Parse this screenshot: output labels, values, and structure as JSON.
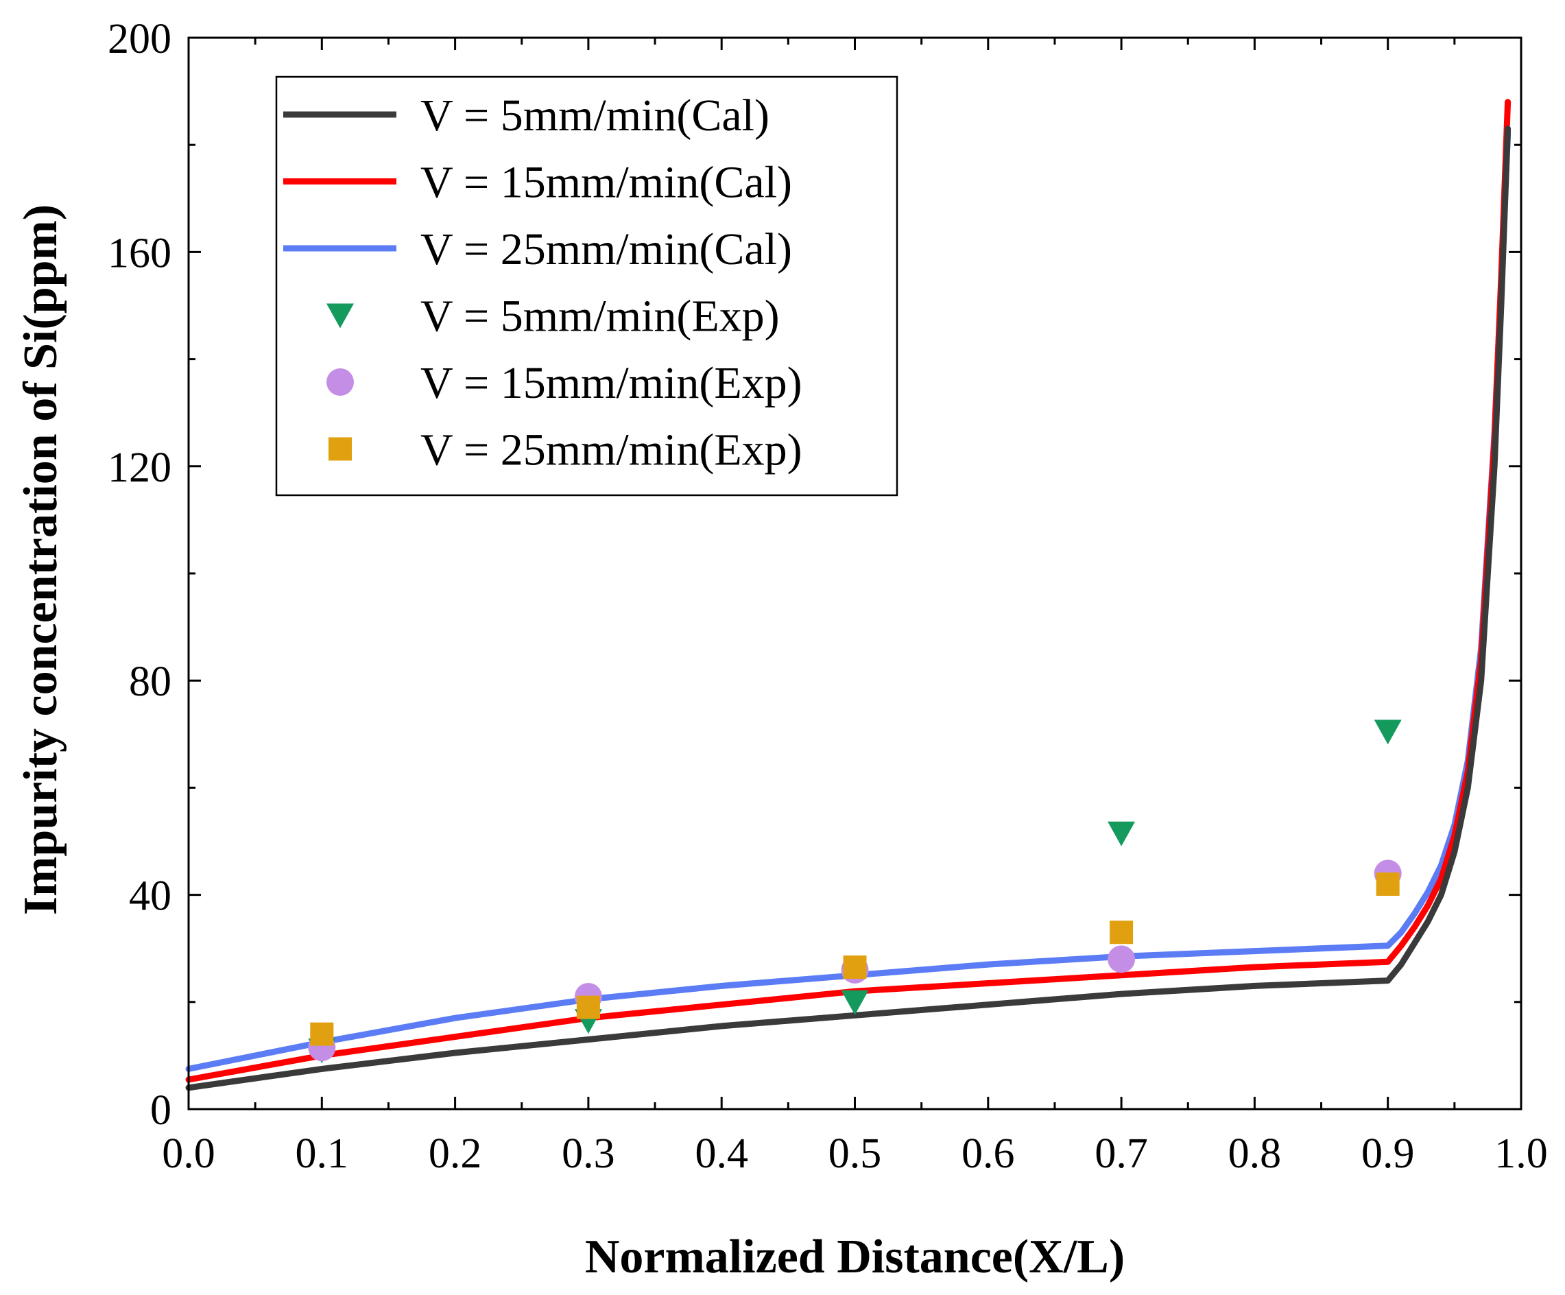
{
  "chart_data": {
    "type": "line",
    "title": "",
    "xlabel": "Normalized Distance(X/L)",
    "ylabel": "Impurity concentration of Si(ppm)",
    "xlim": [
      0.0,
      1.0
    ],
    "ylim": [
      0,
      200
    ],
    "x_ticks": [
      "0.0",
      "0.1",
      "0.2",
      "0.3",
      "0.4",
      "0.5",
      "0.6",
      "0.7",
      "0.8",
      "0.9",
      "1.0"
    ],
    "y_ticks": [
      "0",
      "40",
      "80",
      "120",
      "160",
      "200"
    ],
    "grid": false,
    "legend_position": "top-left",
    "series": [
      {
        "name": "V = 5mm/min(Cal)",
        "kind": "line",
        "color": "#3a3a3a",
        "x": [
          0.0,
          0.1,
          0.2,
          0.3,
          0.4,
          0.5,
          0.6,
          0.7,
          0.8,
          0.9,
          0.91,
          0.92,
          0.93,
          0.94,
          0.95,
          0.96,
          0.97,
          0.98,
          0.985,
          0.99
        ],
        "y": [
          4,
          7.5,
          10.5,
          13,
          15.5,
          17.5,
          19.5,
          21.5,
          23,
          24,
          27,
          31,
          35,
          40,
          48,
          60,
          80,
          120,
          150,
          183
        ]
      },
      {
        "name": "V = 15mm/min(Cal)",
        "kind": "line",
        "color": "#ff0000",
        "x": [
          0.0,
          0.1,
          0.2,
          0.3,
          0.4,
          0.5,
          0.6,
          0.7,
          0.8,
          0.9,
          0.91,
          0.92,
          0.93,
          0.94,
          0.95,
          0.96,
          0.97,
          0.98,
          0.985,
          0.99
        ],
        "y": [
          5.5,
          10,
          13.5,
          17,
          19.5,
          22,
          23.5,
          25,
          26.5,
          27.5,
          30.5,
          34,
          38,
          43,
          51,
          63,
          84,
          125,
          155,
          188
        ]
      },
      {
        "name": "V = 25mm/min(Cal)",
        "kind": "line",
        "color": "#5b7cf5",
        "x": [
          0.0,
          0.1,
          0.2,
          0.3,
          0.4,
          0.5,
          0.6,
          0.7,
          0.8,
          0.9,
          0.91,
          0.92,
          0.93,
          0.94,
          0.95,
          0.96,
          0.97,
          0.98,
          0.985,
          0.99
        ],
        "y": [
          7.5,
          12.5,
          17,
          20.5,
          23,
          25,
          27,
          28.5,
          29.5,
          30.5,
          33,
          36.5,
          40.5,
          45.5,
          53,
          65,
          86,
          126,
          154,
          182
        ]
      },
      {
        "name": "V = 5mm/min(Exp)",
        "kind": "scatter",
        "marker": "triangle-down",
        "color": "#159a5e",
        "x": [
          0.1,
          0.3,
          0.5,
          0.7,
          0.9
        ],
        "y": [
          11,
          16.5,
          20,
          51.5,
          70.5
        ]
      },
      {
        "name": "V = 15mm/min(Exp)",
        "kind": "scatter",
        "marker": "circle",
        "color": "#c58ee6",
        "x": [
          0.1,
          0.3,
          0.5,
          0.7,
          0.9
        ],
        "y": [
          11.5,
          21,
          26,
          28,
          44
        ]
      },
      {
        "name": "V = 25mm/min(Exp)",
        "kind": "scatter",
        "marker": "square",
        "color": "#e0a010",
        "x": [
          0.1,
          0.3,
          0.5,
          0.7,
          0.9
        ],
        "y": [
          14,
          19,
          26.5,
          33,
          42
        ]
      }
    ]
  }
}
